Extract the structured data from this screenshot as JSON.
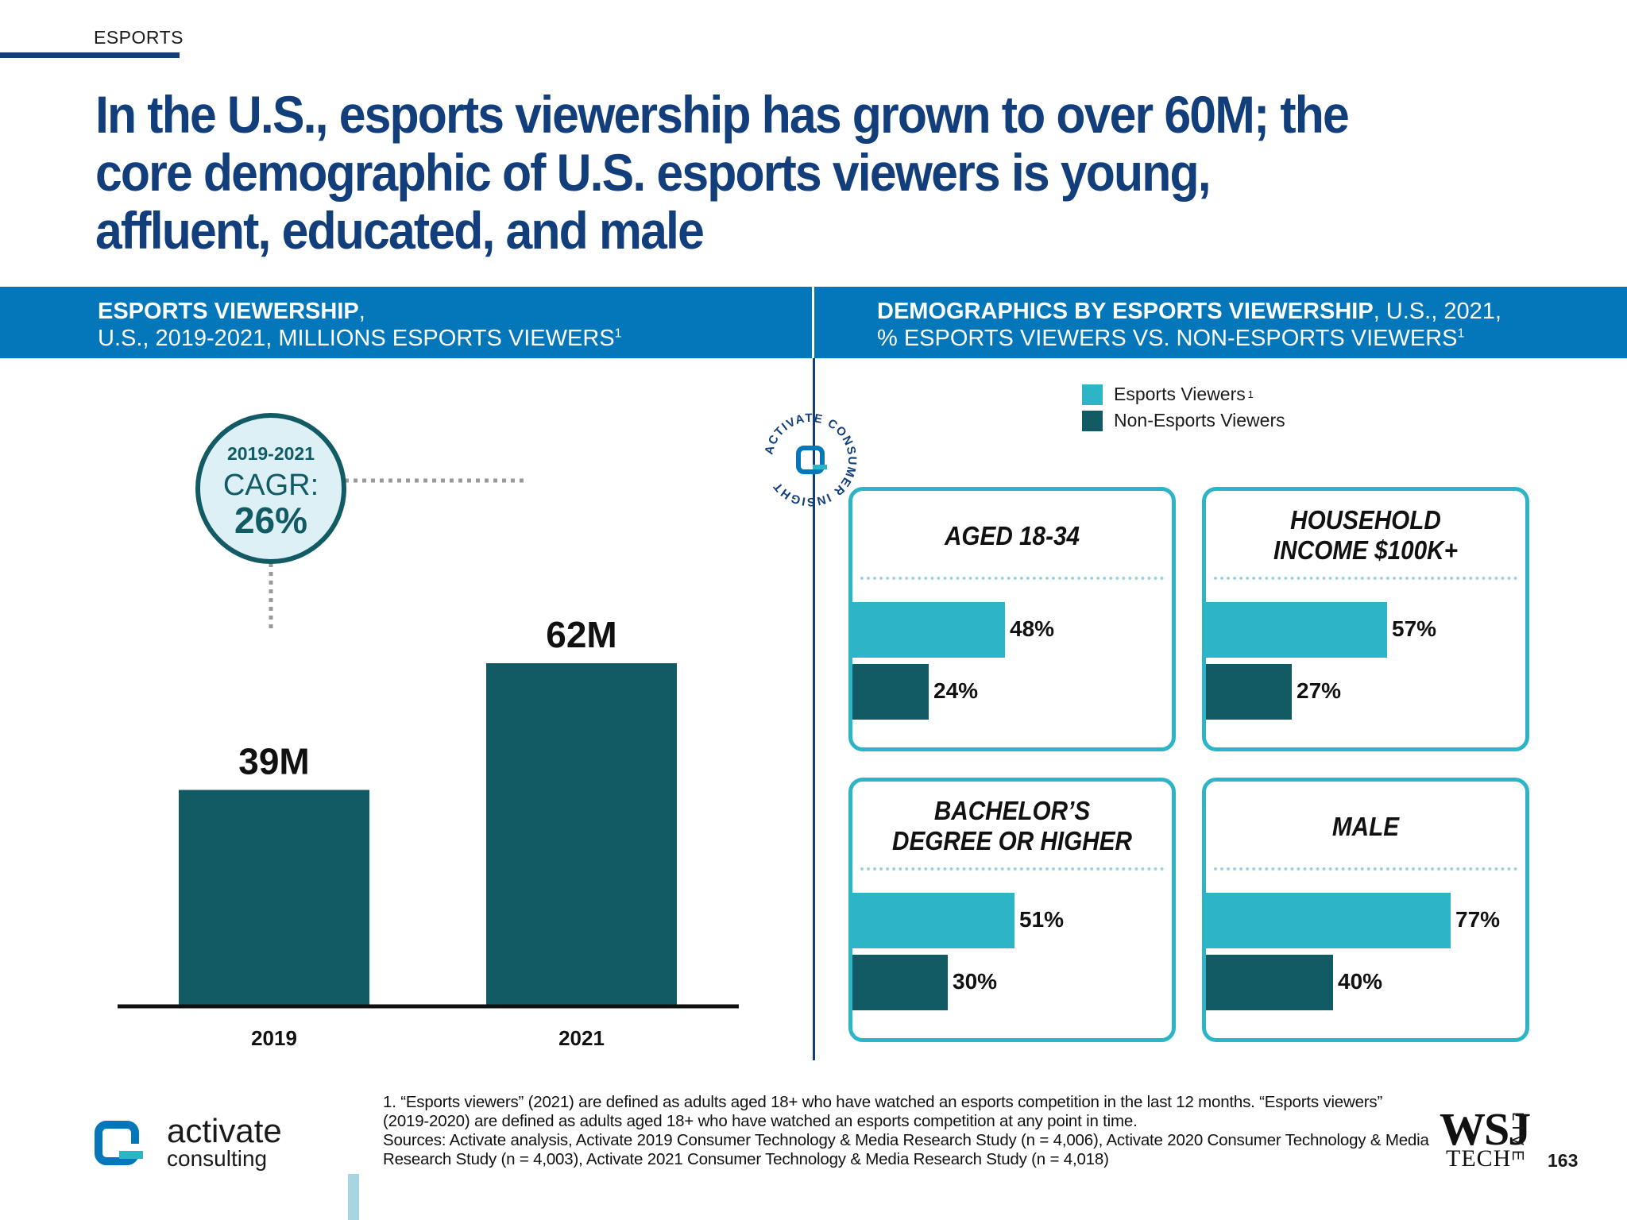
{
  "section_tag": "ESPORTS",
  "headline": "In the U.S., esports viewership has grown to over 60M; the core demographic of U.S. esports viewers is young, affluent, educated, and male",
  "left_header": {
    "bold": "ESPORTS VIEWERSHIP",
    "rest": ",",
    "line2": "U.S., 2019-2021, MILLIONS ESPORTS VIEWERS",
    "sup": "1"
  },
  "right_header": {
    "bold": "DEMOGRAPHICS BY ESPORTS VIEWERSHIP",
    "rest": ", U.S., 2021,",
    "line2": "% ESPORTS VIEWERS VS. NON-ESPORTS VIEWERS",
    "sup": "1"
  },
  "cagr": {
    "period": "2019-2021",
    "label": "CAGR:",
    "value": "26%"
  },
  "badge": {
    "text": "ACTIVATE CONSUMER INSIGHT"
  },
  "colors": {
    "dark_teal": "#125b65",
    "light_teal": "#2db5c7",
    "navy": "#123e7c",
    "band_blue": "#0476ba"
  },
  "chart_data": [
    {
      "type": "bar",
      "title": "ESPORTS VIEWERSHIP, U.S., 2019-2021, MILLIONS ESPORTS VIEWERS",
      "categories": [
        "2019",
        "2021"
      ],
      "values": [
        39,
        62
      ],
      "data_labels": [
        "39M",
        "62M"
      ],
      "ylim": [
        0,
        70
      ],
      "grid": false
    },
    {
      "type": "bar",
      "orientation": "horizontal",
      "title": "DEMOGRAPHICS BY ESPORTS VIEWERSHIP, U.S., 2021, % ESPORTS VIEWERS VS. NON-ESPORTS VIEWERS",
      "legend": {
        "placement": "top",
        "entries": [
          "Esports Viewers",
          "Non-Esports Viewers"
        ],
        "sup": "1"
      },
      "xlim": [
        0,
        100
      ],
      "panels": [
        {
          "title": "AGED 18-34",
          "esports": 48,
          "non_esports": 24,
          "esports_label": "48%",
          "non_esports_label": "24%"
        },
        {
          "title": "HOUSEHOLD INCOME $100K+",
          "esports": 57,
          "non_esports": 27,
          "esports_label": "57%",
          "non_esports_label": "27%"
        },
        {
          "title": "BACHELOR’S DEGREE OR HIGHER",
          "esports": 51,
          "non_esports": 30,
          "esports_label": "51%",
          "non_esports_label": "30%"
        },
        {
          "title": "MALE",
          "esports": 77,
          "non_esports": 40,
          "esports_label": "77%",
          "non_esports_label": "40%"
        }
      ]
    }
  ],
  "footnote": {
    "line1": "1. “Esports viewers” (2021) are defined as adults aged 18+ who have watched an esports competition in the last 12 months. “Esports viewers” (2019-2020) are defined as adults aged 18+ who have watched an esports competition at any point in time.",
    "line2": "Sources: Activate analysis, Activate 2019 Consumer Technology & Media Research Study (n = 4,006), Activate 2020 Consumer Technology & Media Research Study (n = 4,003), Activate 2021 Consumer Technology & Media Research Study (n = 4,018)"
  },
  "logo": {
    "name": "activate",
    "sub": "consulting"
  },
  "wsj": {
    "brand": "WSJ",
    "tech": "TECH",
    "live": "LIVE"
  },
  "page_number": "163"
}
